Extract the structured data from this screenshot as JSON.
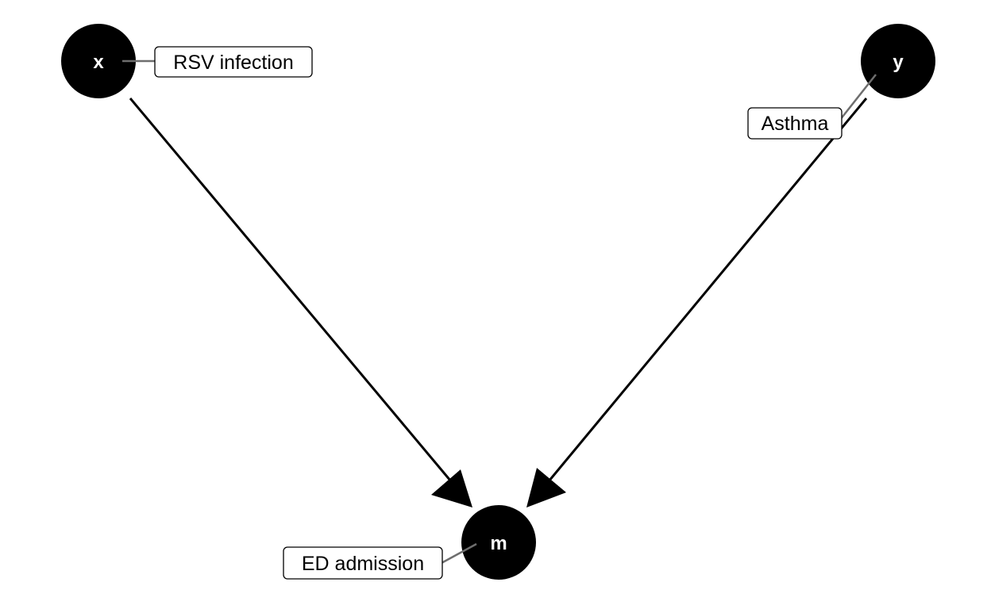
{
  "nodes": [
    {
      "id": "x",
      "letter": "x",
      "label": "RSV infection"
    },
    {
      "id": "y",
      "letter": "y",
      "label": "Asthma"
    },
    {
      "id": "m",
      "letter": "m",
      "label": "ED admission"
    }
  ],
  "edges": [
    {
      "from": "x",
      "to": "m"
    },
    {
      "from": "y",
      "to": "m"
    }
  ],
  "colors": {
    "node_fill": "#000000",
    "node_text": "#ffffff",
    "edge": "#000000",
    "leader": "#6e6e6e",
    "label_border": "#000000",
    "label_fill": "#ffffff"
  }
}
